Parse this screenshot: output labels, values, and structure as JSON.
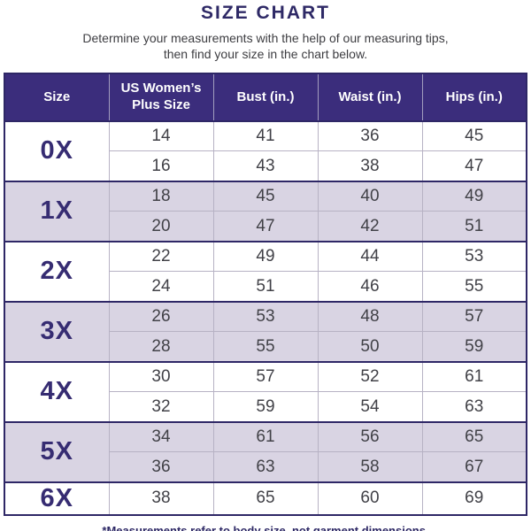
{
  "header": {
    "title": "SIZE CHART",
    "subtitle": "Determine your measurements with the help of our measuring tips,\nthen find your size in the chart below."
  },
  "table": {
    "columns": [
      "Size",
      "US Women’s Plus Size",
      "Bust (in.)",
      "Waist (in.)",
      "Hips (in.)"
    ],
    "groups": [
      {
        "size": "0X",
        "rows": [
          [
            14,
            41,
            36,
            45
          ],
          [
            16,
            43,
            38,
            47
          ]
        ]
      },
      {
        "size": "1X",
        "rows": [
          [
            18,
            45,
            40,
            49
          ],
          [
            20,
            47,
            42,
            51
          ]
        ]
      },
      {
        "size": "2X",
        "rows": [
          [
            22,
            49,
            44,
            53
          ],
          [
            24,
            51,
            46,
            55
          ]
        ]
      },
      {
        "size": "3X",
        "rows": [
          [
            26,
            53,
            48,
            57
          ],
          [
            28,
            55,
            50,
            59
          ]
        ]
      },
      {
        "size": "4X",
        "rows": [
          [
            30,
            57,
            52,
            61
          ],
          [
            32,
            59,
            54,
            63
          ]
        ]
      },
      {
        "size": "5X",
        "rows": [
          [
            34,
            61,
            56,
            65
          ],
          [
            36,
            63,
            58,
            67
          ]
        ]
      },
      {
        "size": "6X",
        "rows": [
          [
            38,
            65,
            60,
            69
          ]
        ]
      }
    ]
  },
  "footer": {
    "note": "*Measurements refer to body size, not garment dimensions."
  },
  "colors": {
    "header_bg": "#3B2D7C",
    "dark_border": "#2E2766",
    "shaded_row_bg": "#D9D4E3",
    "size_label": "#362C72",
    "title_text": "#2E2966",
    "data_text": "#414147",
    "thin_border": "#B7B2C4"
  }
}
